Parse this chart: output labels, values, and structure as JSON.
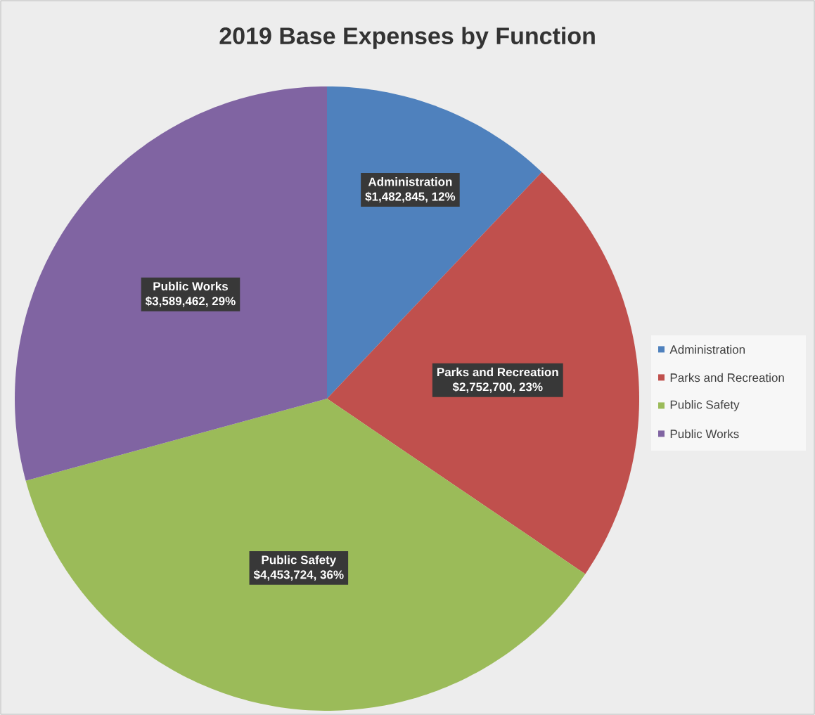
{
  "chart_data": {
    "type": "pie",
    "title": "2019 Base Expenses by Function",
    "categories": [
      "Administration",
      "Parks and Recreation",
      "Public Safety",
      "Public Works"
    ],
    "values": [
      1482845,
      2752700,
      4453724,
      3589462
    ],
    "colors": [
      "#4f81bd",
      "#c0504d",
      "#9bbb59",
      "#8064a2"
    ],
    "value_labels": [
      "$1,482,845, 12%",
      "$2,752,700, 23%",
      "$4,453,724, 36%",
      "$3,589,462, 29%"
    ],
    "legend": "right"
  }
}
